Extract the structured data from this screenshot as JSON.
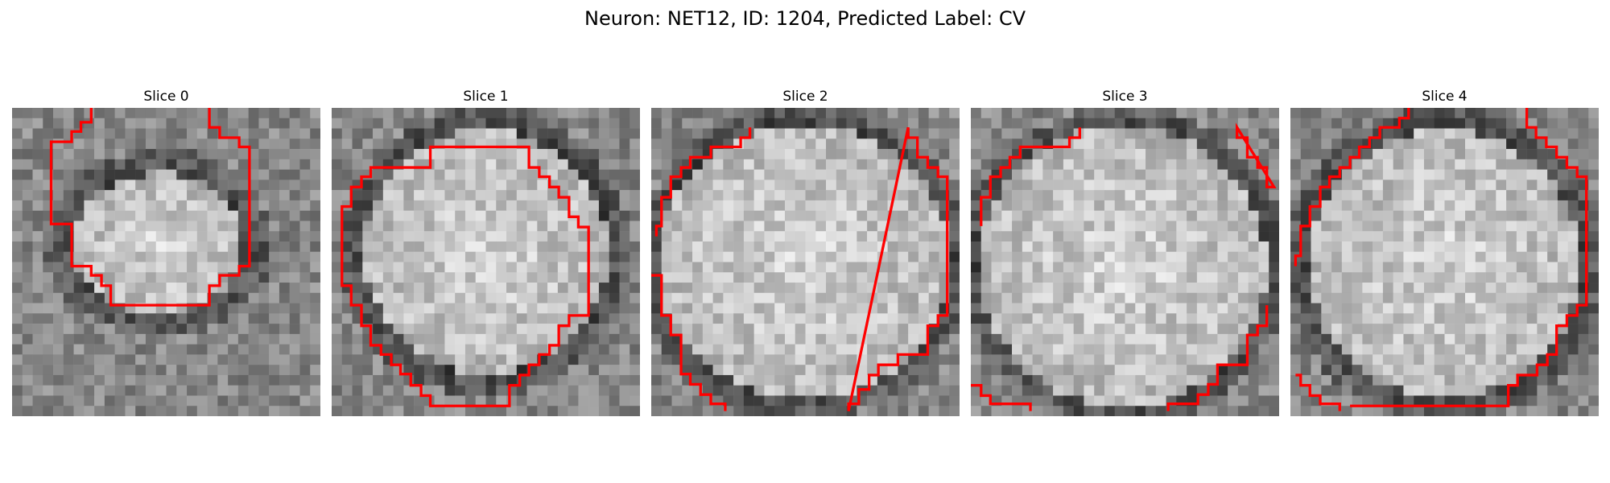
{
  "figure": {
    "title": "Neuron: NET12, ID: 1204, Predicted Label: CV"
  },
  "panels": [
    {
      "title": "Slice 0"
    },
    {
      "title": "Slice 1"
    },
    {
      "title": "Slice 2"
    },
    {
      "title": "Slice 3"
    },
    {
      "title": "Slice 4"
    }
  ],
  "colors": {
    "contour": "#ff0000",
    "background": "#ffffff"
  },
  "image": {
    "colormap": "gray",
    "grid": "30x30"
  }
}
